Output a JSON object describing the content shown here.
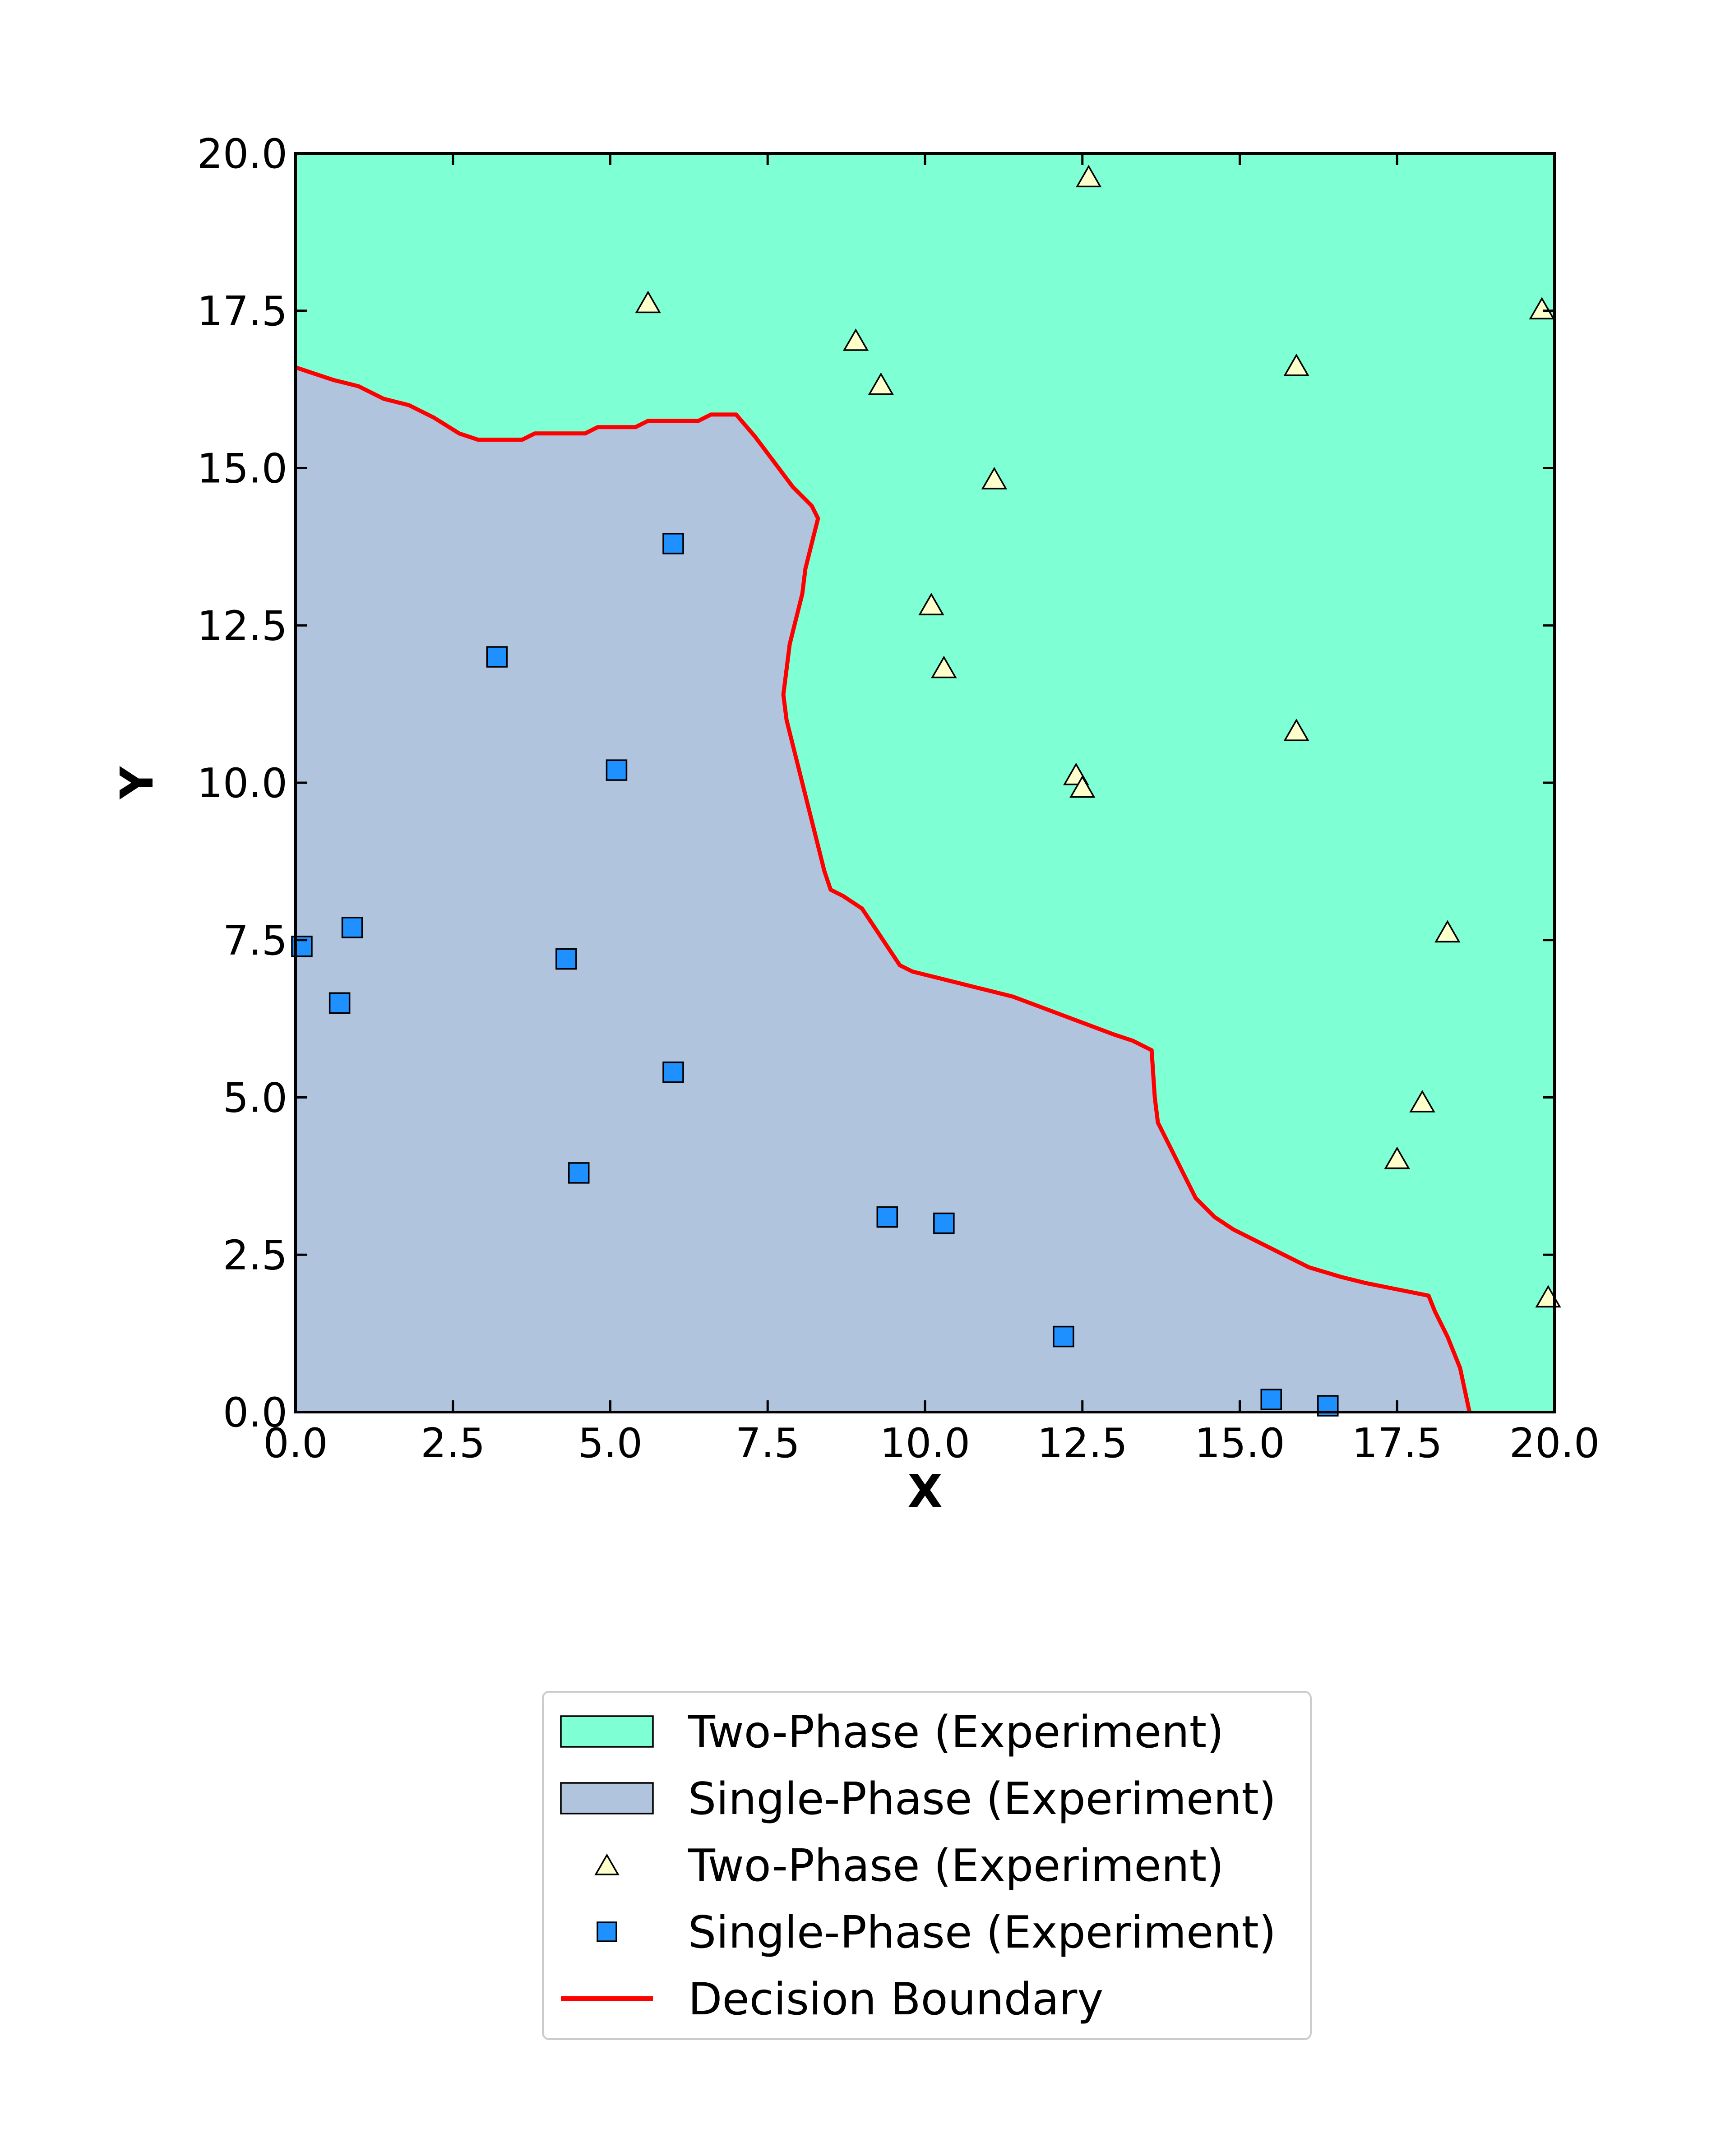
{
  "chart_data": {
    "type": "scatter",
    "title": "",
    "xlabel": "X",
    "ylabel": "Y",
    "xlim": [
      0,
      20
    ],
    "ylim": [
      0,
      20
    ],
    "xticks": [
      "0.0",
      "2.5",
      "5.0",
      "7.5",
      "10.0",
      "12.5",
      "15.0",
      "17.5",
      "20.0"
    ],
    "yticks": [
      "0.0",
      "2.5",
      "5.0",
      "7.5",
      "10.0",
      "12.5",
      "15.0",
      "17.5",
      "20.0"
    ],
    "grid": false,
    "legend_position": "bottom-center",
    "regions": [
      {
        "name": "Two-Phase (Experiment)",
        "color": "#7fffd4"
      },
      {
        "name": "Single-Phase (Experiment)",
        "color": "#b0c4de"
      }
    ],
    "series": [
      {
        "name": "Two-Phase (Experiment)",
        "marker": "triangle",
        "color": "#ffffcc",
        "points": [
          [
            12.6,
            19.6
          ],
          [
            5.6,
            17.6
          ],
          [
            8.9,
            17.0
          ],
          [
            9.3,
            16.3
          ],
          [
            15.9,
            16.6
          ],
          [
            19.8,
            17.5
          ],
          [
            11.1,
            14.8
          ],
          [
            10.1,
            12.8
          ],
          [
            10.3,
            11.8
          ],
          [
            15.9,
            10.8
          ],
          [
            12.4,
            10.1
          ],
          [
            12.5,
            9.9
          ],
          [
            18.3,
            7.6
          ],
          [
            17.9,
            4.9
          ],
          [
            17.5,
            4.0
          ],
          [
            19.9,
            1.8
          ]
        ]
      },
      {
        "name": "Single-Phase (Experiment)",
        "marker": "square",
        "color": "#1e90ff",
        "points": [
          [
            6.0,
            13.8
          ],
          [
            3.2,
            12.0
          ],
          [
            5.1,
            10.2
          ],
          [
            0.9,
            7.7
          ],
          [
            0.1,
            7.4
          ],
          [
            0.7,
            6.5
          ],
          [
            4.3,
            7.2
          ],
          [
            6.0,
            5.4
          ],
          [
            4.5,
            3.8
          ],
          [
            9.4,
            3.1
          ],
          [
            10.3,
            3.0
          ],
          [
            12.2,
            1.2
          ],
          [
            15.5,
            0.2
          ],
          [
            16.4,
            0.1
          ]
        ]
      },
      {
        "name": "Decision Boundary",
        "color": "#ff0000",
        "line": true,
        "points": [
          [
            0,
            16.6
          ],
          [
            0.3,
            16.5
          ],
          [
            0.6,
            16.4
          ],
          [
            1.0,
            16.3
          ],
          [
            1.4,
            16.1
          ],
          [
            1.8,
            16.0
          ],
          [
            2.2,
            15.8
          ],
          [
            2.6,
            15.55
          ],
          [
            2.9,
            15.45
          ],
          [
            3.6,
            15.45
          ],
          [
            3.8,
            15.55
          ],
          [
            4.6,
            15.55
          ],
          [
            4.8,
            15.65
          ],
          [
            5.4,
            15.65
          ],
          [
            5.6,
            15.75
          ],
          [
            6.4,
            15.75
          ],
          [
            6.6,
            15.85
          ],
          [
            7.0,
            15.85
          ],
          [
            7.3,
            15.5
          ],
          [
            7.6,
            15.1
          ],
          [
            7.9,
            14.7
          ],
          [
            8.2,
            14.4
          ],
          [
            8.3,
            14.2
          ],
          [
            8.2,
            13.8
          ],
          [
            8.1,
            13.4
          ],
          [
            8.05,
            13.0
          ],
          [
            7.95,
            12.6
          ],
          [
            7.85,
            12.2
          ],
          [
            7.8,
            11.8
          ],
          [
            7.75,
            11.4
          ],
          [
            7.8,
            11.0
          ],
          [
            7.9,
            10.6
          ],
          [
            8.0,
            10.2
          ],
          [
            8.1,
            9.8
          ],
          [
            8.2,
            9.4
          ],
          [
            8.3,
            9.0
          ],
          [
            8.4,
            8.6
          ],
          [
            8.5,
            8.3
          ],
          [
            8.7,
            8.2
          ],
          [
            9.0,
            8.0
          ],
          [
            9.2,
            7.7
          ],
          [
            9.4,
            7.4
          ],
          [
            9.6,
            7.1
          ],
          [
            9.8,
            7.0
          ],
          [
            10.2,
            6.9
          ],
          [
            10.6,
            6.8
          ],
          [
            11.0,
            6.7
          ],
          [
            11.4,
            6.6
          ],
          [
            11.8,
            6.45
          ],
          [
            12.2,
            6.3
          ],
          [
            12.6,
            6.15
          ],
          [
            13.0,
            6.0
          ],
          [
            13.3,
            5.9
          ],
          [
            13.6,
            5.75
          ],
          [
            13.65,
            5.0
          ],
          [
            13.7,
            4.6
          ],
          [
            13.9,
            4.2
          ],
          [
            14.1,
            3.8
          ],
          [
            14.3,
            3.4
          ],
          [
            14.6,
            3.1
          ],
          [
            14.9,
            2.9
          ],
          [
            15.3,
            2.7
          ],
          [
            15.7,
            2.5
          ],
          [
            16.1,
            2.3
          ],
          [
            16.6,
            2.15
          ],
          [
            17.0,
            2.05
          ],
          [
            17.5,
            1.95
          ],
          [
            18.0,
            1.85
          ],
          [
            18.1,
            1.6
          ],
          [
            18.3,
            1.2
          ],
          [
            18.5,
            0.7
          ],
          [
            18.65,
            0.0
          ]
        ]
      }
    ],
    "legend": [
      {
        "label": "Two-Phase (Experiment)",
        "swatch": "patch",
        "color": "#7fffd4"
      },
      {
        "label": "Single-Phase (Experiment)",
        "swatch": "patch",
        "color": "#b0c4de"
      },
      {
        "label": "Two-Phase (Experiment)",
        "swatch": "triangle",
        "color": "#ffffcc"
      },
      {
        "label": "Single-Phase (Experiment)",
        "swatch": "square",
        "color": "#1e90ff"
      },
      {
        "label": "Decision Boundary",
        "swatch": "line",
        "color": "#ff0000"
      }
    ]
  }
}
